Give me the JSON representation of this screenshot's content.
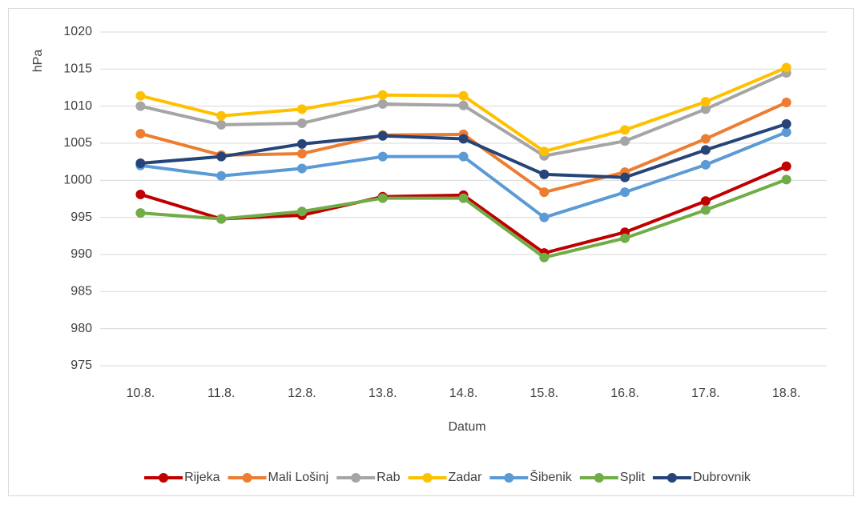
{
  "chart_data": {
    "type": "line",
    "ylabel": "hPa",
    "xlabel": "Datum",
    "categories": [
      "10.8.",
      "11.8.",
      "12.8.",
      "13.8.",
      "14.8.",
      "15.8.",
      "16.8.",
      "17.8.",
      "18.8."
    ],
    "series": [
      {
        "name": "Rijeka",
        "color": "#c00000",
        "values": [
          998.1,
          994.8,
          995.3,
          997.8,
          998.0,
          990.2,
          993.0,
          997.2,
          1001.9
        ]
      },
      {
        "name": "Mali Lošinj",
        "color": "#ed7d31",
        "values": [
          1006.3,
          1003.4,
          1003.6,
          1006.1,
          1006.2,
          998.4,
          1001.1,
          1005.6,
          1010.5
        ]
      },
      {
        "name": "Rab",
        "color": "#a5a5a5",
        "values": [
          1010.0,
          1007.5,
          1007.7,
          1010.3,
          1010.1,
          1003.3,
          1005.3,
          1009.6,
          1014.5
        ]
      },
      {
        "name": "Zadar",
        "color": "#ffc000",
        "values": [
          1011.4,
          1008.7,
          1009.6,
          1011.5,
          1011.4,
          1003.9,
          1006.8,
          1010.6,
          1015.2
        ]
      },
      {
        "name": "Šibenik",
        "color": "#5b9bd5",
        "values": [
          1002.0,
          1000.6,
          1001.6,
          1003.2,
          1003.2,
          995.0,
          998.4,
          1002.1,
          1006.5
        ]
      },
      {
        "name": "Split",
        "color": "#70ad47",
        "values": [
          995.6,
          994.8,
          995.8,
          997.6,
          997.6,
          989.6,
          992.2,
          996.0,
          1000.1
        ]
      },
      {
        "name": "Dubrovnik",
        "color": "#264478",
        "values": [
          1002.3,
          1003.2,
          1004.9,
          1006.0,
          1005.6,
          1000.8,
          1000.4,
          1004.1,
          1007.6
        ]
      }
    ],
    "ylim": [
      975,
      1020
    ],
    "yticks": [
      975,
      980,
      985,
      990,
      995,
      1000,
      1005,
      1010,
      1015,
      1020
    ],
    "grid": true,
    "legend": "bottom"
  }
}
